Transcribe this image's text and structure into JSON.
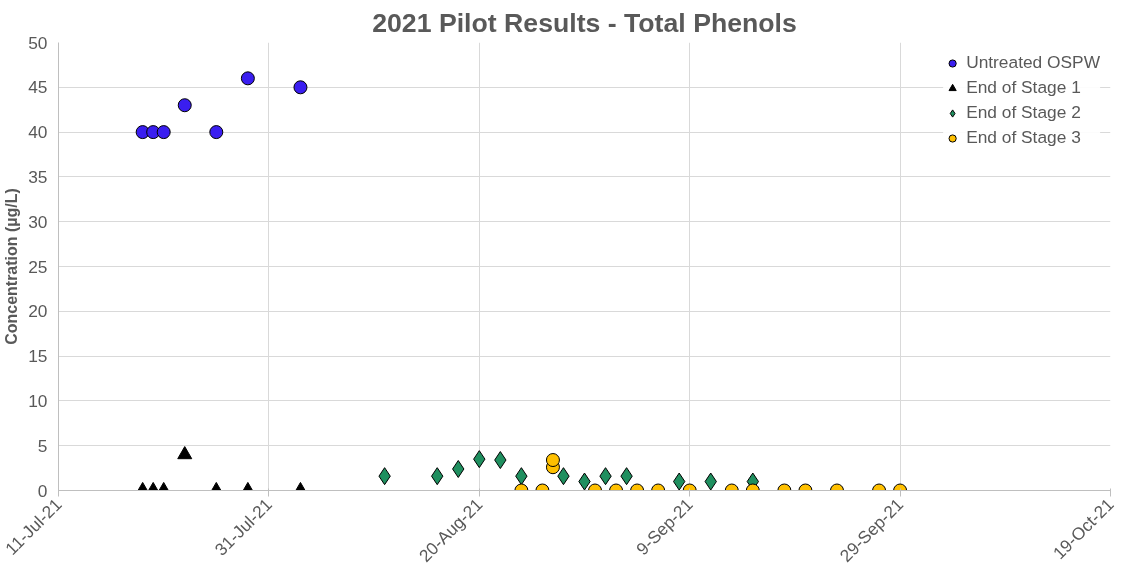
{
  "chart_data": {
    "type": "scatter",
    "title": "2021 Pilot Results - Total Phenols",
    "ylabel": "Concentration (µg/L)",
    "xlim": [
      "2021-07-11",
      "2021-10-19"
    ],
    "xticks": [
      {
        "value": "2021-07-11",
        "label": "11-Jul-21"
      },
      {
        "value": "2021-07-31",
        "label": "31-Jul-21"
      },
      {
        "value": "2021-08-20",
        "label": "20-Aug-21"
      },
      {
        "value": "2021-09-09",
        "label": "9-Sep-21"
      },
      {
        "value": "2021-09-29",
        "label": "29-Sep-21"
      },
      {
        "value": "2021-10-19",
        "label": "19-Oct-21"
      }
    ],
    "ylim": [
      0,
      50
    ],
    "yticks": [
      0,
      5,
      10,
      15,
      20,
      25,
      30,
      35,
      40,
      45,
      50
    ],
    "grid": true,
    "legend": "top right",
    "series": [
      {
        "name": "Untreated OSPW",
        "color": "#3a1ef0",
        "marker": "circle",
        "x": [
          "2021-07-19",
          "2021-07-20",
          "2021-07-21",
          "2021-07-23",
          "2021-07-26",
          "2021-07-29",
          "2021-08-03"
        ],
        "values": [
          40,
          40,
          40,
          43,
          40,
          46,
          45
        ]
      },
      {
        "name": "End of Stage 1",
        "color": "#000000",
        "marker": "triangle",
        "x": [
          "2021-07-19",
          "2021-07-20",
          "2021-07-21",
          "2021-07-23",
          "2021-07-26",
          "2021-07-29",
          "2021-08-03"
        ],
        "values": [
          0,
          0,
          0,
          4,
          0,
          0,
          0
        ]
      },
      {
        "name": "End of Stage 2",
        "color": "#1f8f5f",
        "marker": "diamond",
        "x": [
          "2021-08-11",
          "2021-08-16",
          "2021-08-18",
          "2021-08-20",
          "2021-08-22",
          "2021-08-24",
          "2021-08-28",
          "2021-08-30",
          "2021-09-01",
          "2021-09-03",
          "2021-09-08",
          "2021-09-11",
          "2021-09-15"
        ],
        "values": [
          1.6,
          1.6,
          2.4,
          3.5,
          3.4,
          1.6,
          1.6,
          1,
          1.6,
          1.6,
          1,
          1,
          1
        ]
      },
      {
        "name": "End of Stage 3",
        "color": "#ffc000",
        "marker": "circle",
        "x": [
          "2021-08-24",
          "2021-08-26",
          "2021-08-27",
          "2021-08-27",
          "2021-08-31",
          "2021-09-02",
          "2021-09-04",
          "2021-09-06",
          "2021-09-09",
          "2021-09-13",
          "2021-09-15",
          "2021-09-18",
          "2021-09-20",
          "2021-09-23",
          "2021-09-27",
          "2021-09-29"
        ],
        "values": [
          0,
          0,
          2.6,
          3.4,
          0,
          0,
          0,
          0,
          0,
          0,
          0,
          0,
          0,
          0,
          0,
          0
        ]
      }
    ]
  }
}
